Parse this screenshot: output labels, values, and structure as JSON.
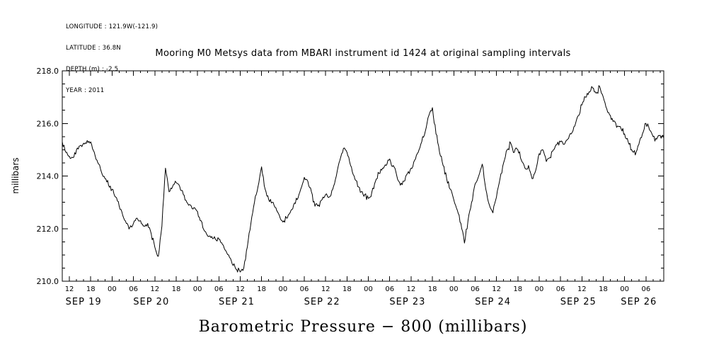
{
  "meta_lines": [
    "LONGITUDE : 121.9W(-121.9)",
    "LATITUDE : 36.8N",
    "DEPTH (m) : -2.5",
    "YEAR : 2011"
  ],
  "header": {
    "title": "Mooring M0 Metsys data from MBARI instrument id 1424 at original sampling intervals"
  },
  "chart_data": {
    "type": "line",
    "title": "Mooring M0 Metsys data from MBARI instrument id 1424 at original sampling intervals",
    "ylabel": "millibars",
    "bottom_label": "Barometric Pressure − 800 (millibars)",
    "ylim": [
      210.0,
      218.0
    ],
    "ytick_values": [
      210.0,
      212.0,
      214.0,
      216.0,
      218.0
    ],
    "ytick_labels": [
      "210.0",
      "212.0",
      "214.0",
      "216.0",
      "218.0"
    ],
    "y_minor_step": 0.5,
    "grid": false,
    "legend": "none",
    "line_color": "#000000",
    "x_range_hours": [
      10,
      179
    ],
    "hour_ticks": [
      12,
      18,
      24,
      30,
      36,
      42,
      48,
      54,
      60,
      66,
      72,
      78,
      84,
      90,
      96,
      102,
      108,
      114,
      120,
      126,
      132,
      138,
      144,
      150,
      156,
      162,
      168,
      174
    ],
    "hour_tick_labels": [
      "12",
      "18",
      "00",
      "06",
      "12",
      "18",
      "00",
      "06",
      "12",
      "18",
      "00",
      "06",
      "12",
      "18",
      "00",
      "06",
      "12",
      "18",
      "00",
      "06",
      "12",
      "18",
      "00",
      "06",
      "12",
      "18",
      "00",
      "06"
    ],
    "day_labels": [
      {
        "label": "SEP 19",
        "mid_hour": 16
      },
      {
        "label": "SEP 20",
        "mid_hour": 35
      },
      {
        "label": "SEP 21",
        "mid_hour": 59
      },
      {
        "label": "SEP 22",
        "mid_hour": 83
      },
      {
        "label": "SEP 23",
        "mid_hour": 107
      },
      {
        "label": "SEP 24",
        "mid_hour": 131
      },
      {
        "label": "SEP 25",
        "mid_hour": 155
      },
      {
        "label": "SEP 26",
        "mid_hour": 172
      }
    ],
    "noise_amplitude": 0.09,
    "series": [
      {
        "name": "barometric-pressure-minus-800-millibars",
        "x_start_hour": 10,
        "x_step_hours": 1,
        "values": [
          215.3,
          214.9,
          214.75,
          214.7,
          215.0,
          215.15,
          215.25,
          215.35,
          215.3,
          214.9,
          214.5,
          214.15,
          213.9,
          213.65,
          213.5,
          213.2,
          212.85,
          212.5,
          212.2,
          212.05,
          212.2,
          212.4,
          212.3,
          212.1,
          212.2,
          211.8,
          211.3,
          210.95,
          212.1,
          214.3,
          213.4,
          213.6,
          213.75,
          213.6,
          213.3,
          213.0,
          212.9,
          212.8,
          212.65,
          212.3,
          211.9,
          211.7,
          211.7,
          211.6,
          211.6,
          211.4,
          211.15,
          210.9,
          210.6,
          210.45,
          210.35,
          210.5,
          211.3,
          212.2,
          213.0,
          213.6,
          214.35,
          213.5,
          213.1,
          213.0,
          212.8,
          212.5,
          212.25,
          212.4,
          212.6,
          212.9,
          213.1,
          213.5,
          213.95,
          213.8,
          213.4,
          212.85,
          212.9,
          213.1,
          213.3,
          213.2,
          213.5,
          214.0,
          214.6,
          215.05,
          214.9,
          214.4,
          214.0,
          213.6,
          213.4,
          213.3,
          213.15,
          213.4,
          213.8,
          214.1,
          214.3,
          214.4,
          214.65,
          214.4,
          214.0,
          213.65,
          213.8,
          214.1,
          214.3,
          214.6,
          214.9,
          215.3,
          215.7,
          216.3,
          216.6,
          215.6,
          214.9,
          214.4,
          213.9,
          213.5,
          213.1,
          212.7,
          212.2,
          211.45,
          212.3,
          213.0,
          213.7,
          214.0,
          214.45,
          213.5,
          212.9,
          212.6,
          213.2,
          213.9,
          214.5,
          215.0,
          215.25,
          214.9,
          215.0,
          214.6,
          214.3,
          214.4,
          213.9,
          214.2,
          214.85,
          215.0,
          214.55,
          214.7,
          215.0,
          215.2,
          215.3,
          215.2,
          215.4,
          215.6,
          215.9,
          216.3,
          216.7,
          217.0,
          217.2,
          217.35,
          217.15,
          217.4,
          217.0,
          216.55,
          216.3,
          216.1,
          215.9,
          215.8,
          215.6,
          215.3,
          215.0,
          214.8,
          215.2,
          215.6,
          216.0,
          215.75,
          215.5,
          215.4,
          215.55,
          215.45
        ]
      }
    ]
  }
}
